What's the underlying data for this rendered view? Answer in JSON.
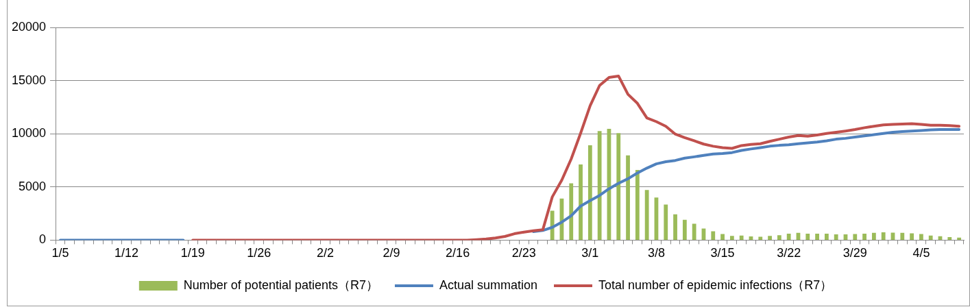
{
  "chart_data": {
    "type": "line",
    "categories": [
      "1/5",
      null,
      null,
      null,
      null,
      null,
      null,
      "1/12",
      null,
      null,
      null,
      null,
      null,
      null,
      "1/19",
      null,
      null,
      null,
      null,
      null,
      null,
      "1/26",
      null,
      null,
      null,
      null,
      null,
      null,
      "2/2",
      null,
      null,
      null,
      null,
      null,
      null,
      "2/9",
      null,
      null,
      null,
      null,
      null,
      null,
      "2/16",
      null,
      null,
      null,
      null,
      null,
      null,
      "2/23",
      null,
      null,
      null,
      null,
      null,
      null,
      "3/1",
      null,
      null,
      null,
      null,
      null,
      null,
      "3/8",
      null,
      null,
      null,
      null,
      null,
      null,
      "3/15",
      null,
      null,
      null,
      null,
      null,
      null,
      "3/22",
      null,
      null,
      null,
      null,
      null,
      null,
      "3/29",
      null,
      null,
      null,
      null,
      null,
      null,
      "4/5",
      null,
      null,
      null,
      null
    ],
    "series": [
      {
        "name": "Number of potential patients（R7）",
        "type": "bar",
        "color": "#9bbb59",
        "values": [
          null,
          null,
          null,
          null,
          null,
          null,
          null,
          null,
          null,
          null,
          null,
          null,
          null,
          null,
          null,
          null,
          null,
          null,
          null,
          null,
          null,
          null,
          null,
          null,
          null,
          null,
          null,
          null,
          null,
          null,
          null,
          null,
          null,
          null,
          null,
          null,
          null,
          null,
          null,
          null,
          null,
          null,
          null,
          null,
          null,
          null,
          null,
          null,
          null,
          null,
          null,
          null,
          2770,
          3910,
          5340,
          7110,
          8910,
          10260,
          10460,
          10060,
          7970,
          6600,
          4710,
          4000,
          3340,
          2430,
          1910,
          1540,
          1090,
          830,
          570,
          400,
          430,
          340,
          310,
          400,
          460,
          600,
          690,
          600,
          600,
          600,
          540,
          540,
          570,
          600,
          690,
          740,
          710,
          690,
          630,
          570,
          430,
          370,
          290,
          230
        ]
      },
      {
        "name": "Actual summation",
        "color": "#4f81bd",
        "values": [
          0,
          0,
          0,
          0,
          0,
          0,
          0,
          0,
          0,
          0,
          0,
          0,
          0,
          0,
          null,
          null,
          null,
          null,
          null,
          null,
          null,
          null,
          null,
          null,
          null,
          null,
          null,
          null,
          null,
          null,
          null,
          null,
          null,
          null,
          null,
          null,
          null,
          null,
          null,
          null,
          null,
          null,
          null,
          null,
          null,
          null,
          null,
          null,
          null,
          null,
          800,
          910,
          1200,
          1690,
          2290,
          3200,
          3710,
          4200,
          4830,
          5340,
          5770,
          6310,
          6770,
          7170,
          7370,
          7490,
          7710,
          7830,
          7970,
          8090,
          8140,
          8230,
          8430,
          8570,
          8690,
          8830,
          8910,
          8970,
          9060,
          9140,
          9230,
          9340,
          9490,
          9570,
          9690,
          9800,
          9910,
          10030,
          10140,
          10200,
          10260,
          10310,
          10370,
          10400,
          10400,
          10400
        ]
      },
      {
        "name": "Total number of epidemic infections（R7）",
        "color": "#c0504d",
        "values": [
          null,
          null,
          null,
          null,
          null,
          null,
          null,
          null,
          null,
          null,
          null,
          null,
          null,
          null,
          0,
          0,
          0,
          0,
          0,
          0,
          0,
          0,
          0,
          0,
          0,
          0,
          0,
          0,
          0,
          0,
          0,
          0,
          0,
          0,
          0,
          0,
          0,
          0,
          0,
          0,
          0,
          0,
          0,
          0,
          50,
          100,
          200,
          350,
          600,
          750,
          880,
          970,
          4060,
          5630,
          7630,
          10060,
          12630,
          14540,
          15290,
          15430,
          13710,
          12860,
          11490,
          11140,
          10710,
          9970,
          9630,
          9340,
          9030,
          8830,
          8690,
          8630,
          8890,
          9000,
          9060,
          9290,
          9490,
          9690,
          9830,
          9770,
          9890,
          10030,
          10140,
          10260,
          10400,
          10570,
          10710,
          10830,
          10890,
          10910,
          10940,
          10890,
          10800,
          10800,
          10770,
          10710
        ]
      }
    ],
    "ylim": [
      0,
      20000
    ],
    "yticks": [
      0,
      5000,
      10000,
      15000,
      20000
    ],
    "grid": "y",
    "legend": "bottom",
    "marker": "none",
    "line_style": "solid"
  }
}
